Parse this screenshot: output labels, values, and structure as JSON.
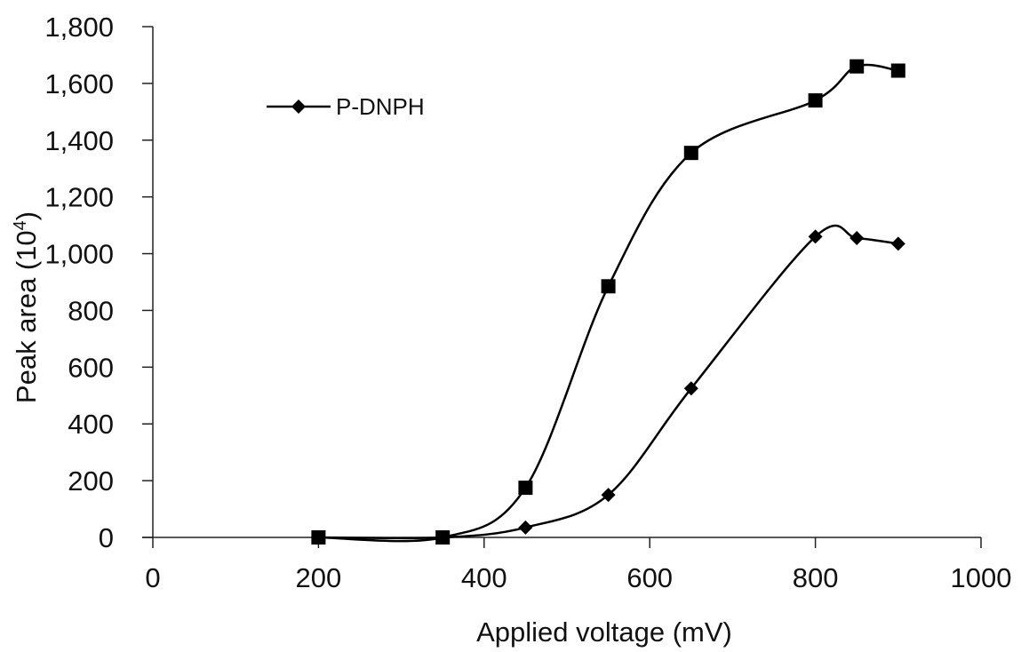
{
  "chart_data": {
    "type": "line",
    "title": "",
    "xlabel": "Applied voltage (mV)",
    "ylabel": "Peak area (10",
    "ylabel_superscript": "4",
    "ylabel_suffix": ")",
    "xlim": [
      0,
      1000
    ],
    "ylim": [
      0,
      1800
    ],
    "x_ticks": [
      0,
      200,
      400,
      600,
      800,
      1000
    ],
    "x_tick_labels": [
      "0",
      "200",
      "400",
      "600",
      "800",
      "1000"
    ],
    "y_ticks": [
      0,
      200,
      400,
      600,
      800,
      1000,
      1200,
      1400,
      1600,
      1800
    ],
    "y_tick_labels": [
      "0",
      "200",
      "400",
      "600",
      "800",
      "1,000",
      "1,200",
      "1,400",
      "1,600",
      "1,800"
    ],
    "grid": false,
    "legend_position": "top-left",
    "smooth": true,
    "series": [
      {
        "name": "P-DNPH",
        "marker": "diamond",
        "color": "#000000",
        "x": [
          200,
          350,
          450,
          550,
          650,
          800,
          850,
          900
        ],
        "y": [
          0,
          0,
          35,
          150,
          525,
          1060,
          1055,
          1035
        ]
      },
      {
        "marker": "square",
        "color": "#000000",
        "x": [
          200,
          350,
          450,
          550,
          650,
          800,
          850,
          900
        ],
        "y": [
          0,
          0,
          175,
          885,
          1355,
          1540,
          1660,
          1645
        ]
      }
    ]
  }
}
